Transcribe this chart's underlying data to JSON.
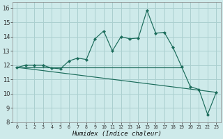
{
  "title": "",
  "xlabel": "Humidex (Indice chaleur)",
  "background_color": "#ceeaea",
  "grid_color": "#aacfcf",
  "line_color": "#1a6b5a",
  "xlim": [
    -0.5,
    23.5
  ],
  "ylim": [
    8,
    16.4
  ],
  "yticks": [
    8,
    9,
    10,
    11,
    12,
    13,
    14,
    15,
    16
  ],
  "xticks": [
    0,
    1,
    2,
    3,
    4,
    5,
    6,
    7,
    8,
    9,
    10,
    11,
    12,
    13,
    14,
    15,
    16,
    17,
    18,
    19,
    20,
    21,
    22,
    23
  ],
  "x": [
    0,
    1,
    2,
    3,
    4,
    5,
    6,
    7,
    8,
    9,
    10,
    11,
    12,
    13,
    14,
    15,
    16,
    17,
    18,
    19,
    20,
    21,
    22,
    23
  ],
  "y_jagged": [
    11.85,
    12.0,
    12.0,
    12.0,
    11.8,
    11.75,
    12.3,
    12.5,
    12.4,
    13.85,
    14.4,
    13.0,
    14.0,
    13.85,
    13.9,
    15.85,
    14.25,
    14.3,
    13.25,
    11.9,
    10.5,
    10.3,
    8.55,
    10.1
  ],
  "line1_x": [
    0,
    19
  ],
  "line1_y": [
    11.85,
    11.85
  ],
  "line2_x": [
    0,
    23
  ],
  "line2_y": [
    11.85,
    10.1
  ]
}
